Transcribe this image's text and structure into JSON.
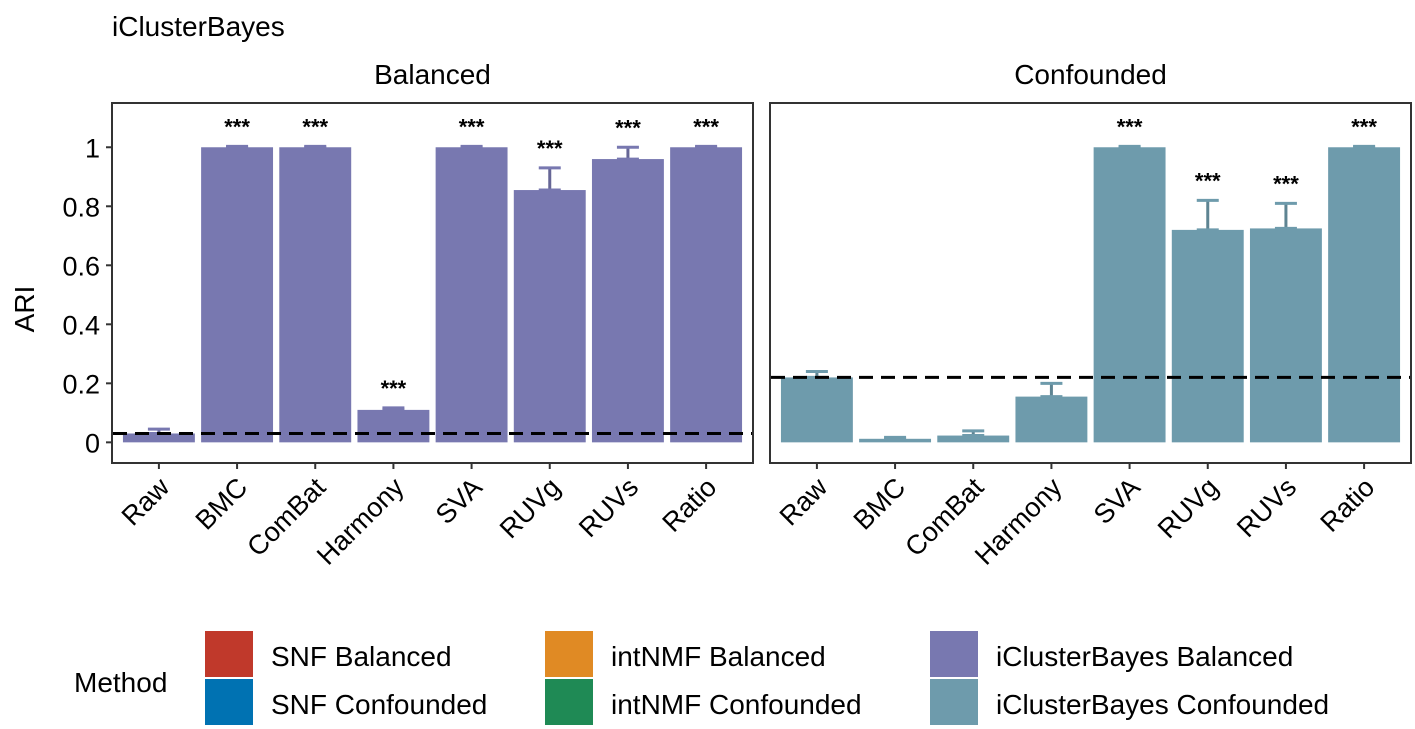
{
  "chart_data": {
    "type": "bar",
    "title": "iClusterBayes",
    "ylabel": "ARI",
    "xlabel": "",
    "ylim": [
      -0.07,
      1.15
    ],
    "yticks": [
      "0",
      "0.2",
      "0.4",
      "0.6",
      "0.8",
      "1"
    ],
    "yticks_values": [
      0,
      0.2,
      0.4,
      0.6,
      0.8,
      1
    ],
    "categories": [
      "Raw",
      "BMC",
      "ComBat",
      "Harmony",
      "SVA",
      "RUVg",
      "RUVs",
      "Ratio"
    ],
    "panels": [
      {
        "name": "Balanced",
        "color": "#7878b0",
        "values": [
          0.03,
          1.0,
          1.0,
          0.11,
          1.0,
          0.855,
          0.96,
          1.0
        ],
        "errors": [
          0.015,
          0.003,
          0.003,
          0.007,
          0.003,
          0.075,
          0.04,
          0.003
        ],
        "significance": [
          "",
          "***",
          "***",
          "***",
          "***",
          "***",
          "***",
          "***"
        ],
        "reference_line": 0.03
      },
      {
        "name": "Confounded",
        "color": "#6e9bac",
        "values": [
          0.22,
          0.012,
          0.023,
          0.155,
          1.0,
          0.72,
          0.725,
          1.0
        ],
        "errors": [
          0.02,
          0.005,
          0.016,
          0.045,
          0.003,
          0.1,
          0.085,
          0.003
        ],
        "significance": [
          "",
          "",
          "",
          "",
          "***",
          "***",
          "***",
          "***"
        ],
        "reference_line": 0.22
      }
    ]
  },
  "legend": {
    "title": "Method",
    "items": [
      {
        "label": "SNF Balanced",
        "color": "#c0392b"
      },
      {
        "label": "SNF Confounded",
        "color": "#0072b2"
      },
      {
        "label": "intNMF Balanced",
        "color": "#e08a24"
      },
      {
        "label": "intNMF Confounded",
        "color": "#1f8a55"
      },
      {
        "label": "iClusterBayes Balanced",
        "color": "#7878b0"
      },
      {
        "label": "iClusterBayes Confounded",
        "color": "#6e9bac"
      }
    ]
  }
}
